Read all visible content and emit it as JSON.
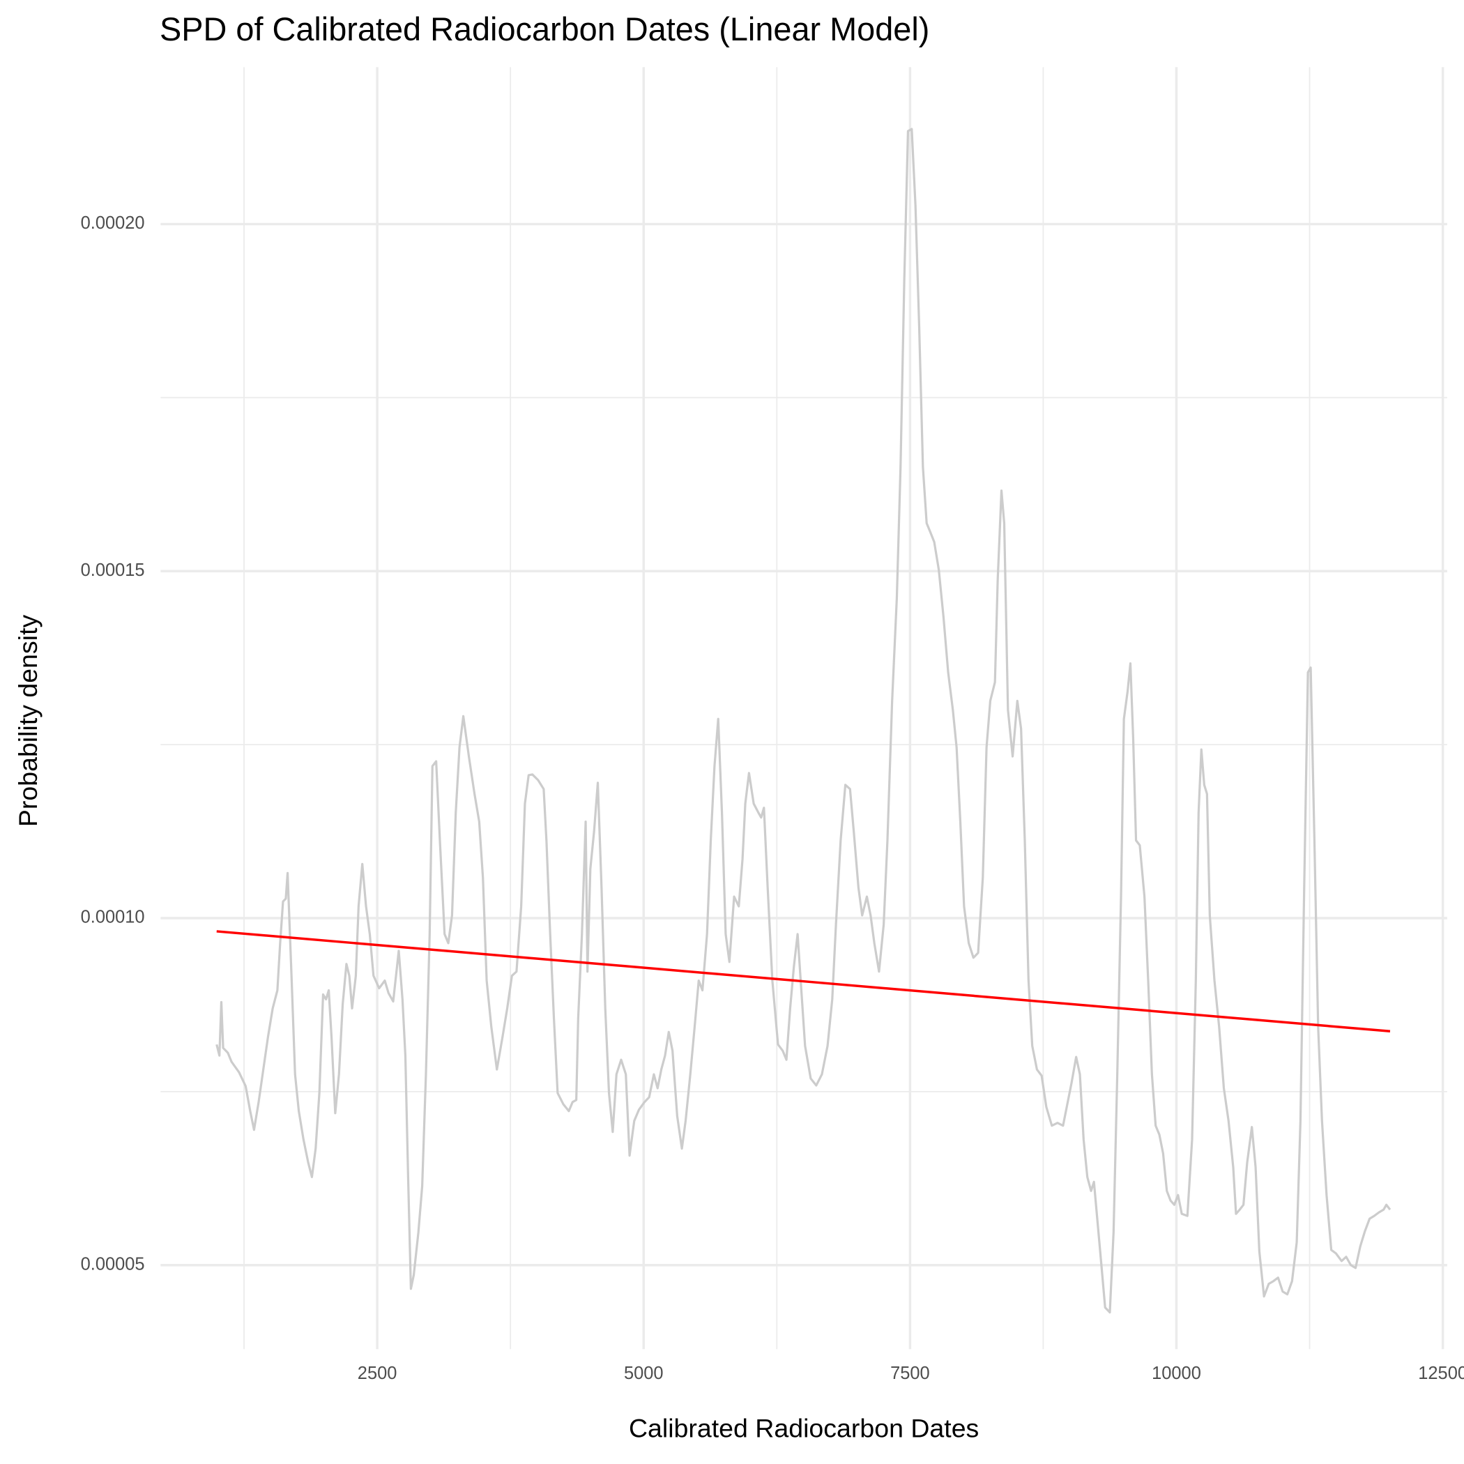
{
  "chart_data": {
    "type": "line",
    "title": "SPD of Calibrated Radiocarbon Dates (Linear Model)",
    "x_label": "Calibrated Radiocarbon Dates",
    "y_label": "Probability density",
    "xlim": [
      467,
      12541
    ],
    "ylim": [
      3.79e-05,
      0.0002226
    ],
    "xticks": [
      2500,
      5000,
      7500,
      10000,
      12500
    ],
    "yticks": [
      {
        "value": 5e-05,
        "label": "0.00005"
      },
      {
        "value": 0.0001,
        "label": "0.00010"
      },
      {
        "value": 0.00015,
        "label": "0.00015"
      },
      {
        "value": 0.0002,
        "label": "0.00020"
      }
    ],
    "grid": true,
    "series": [
      {
        "color": "#cccccc",
        "x": [
          993,
          1019,
          1037,
          1054,
          1098,
          1133,
          1203,
          1265,
          1308,
          1344,
          1387,
          1431,
          1475,
          1519,
          1563,
          1589,
          1616,
          1642,
          1659,
          1694,
          1729,
          1764,
          1808,
          1852,
          1887,
          1922,
          1957,
          1992,
          2019,
          2045,
          2071,
          2106,
          2141,
          2176,
          2211,
          2238,
          2264,
          2299,
          2325,
          2360,
          2395,
          2430,
          2465,
          2518,
          2571,
          2606,
          2650,
          2702,
          2737,
          2764,
          2790,
          2816,
          2843,
          2886,
          2922,
          2957,
          2992,
          3018,
          3053,
          3088,
          3132,
          3167,
          3202,
          3237,
          3272,
          3308,
          3360,
          3413,
          3457,
          3492,
          3527,
          3571,
          3623,
          3676,
          3720,
          3764,
          3807,
          3851,
          3886,
          3921,
          3956,
          4009,
          4062,
          4088,
          4123,
          4158,
          4193,
          4246,
          4298,
          4333,
          4368,
          4386,
          4421,
          4456,
          4473,
          4500,
          4535,
          4570,
          4605,
          4640,
          4675,
          4710,
          4745,
          4789,
          4833,
          4868,
          4912,
          4956,
          5008,
          5052,
          5096,
          5131,
          5166,
          5201,
          5236,
          5271,
          5315,
          5359,
          5394,
          5438,
          5482,
          5517,
          5552,
          5595,
          5630,
          5665,
          5700,
          5735,
          5770,
          5805,
          5849,
          5893,
          5928,
          5954,
          5989,
          6033,
          6077,
          6103,
          6129,
          6164,
          6208,
          6261,
          6305,
          6340,
          6375,
          6410,
          6445,
          6480,
          6515,
          6568,
          6620,
          6673,
          6726,
          6770,
          6805,
          6849,
          6893,
          6937,
          6972,
          7016,
          7051,
          7095,
          7130,
          7165,
          7209,
          7253,
          7288,
          7332,
          7376,
          7411,
          7446,
          7481,
          7516,
          7551,
          7586,
          7621,
          7656,
          7691,
          7727,
          7770,
          7814,
          7858,
          7902,
          7937,
          7972,
          8007,
          8051,
          8095,
          8139,
          8183,
          8218,
          8253,
          8297,
          8323,
          8358,
          8384,
          8419,
          8463,
          8507,
          8542,
          8577,
          8612,
          8647,
          8691,
          8735,
          8779,
          8831,
          8884,
          8936,
          8980,
          9015,
          9059,
          9094,
          9129,
          9164,
          9199,
          9226,
          9261,
          9296,
          9331,
          9375,
          9410,
          9445,
          9480,
          9507,
          9542,
          9568,
          9594,
          9621,
          9656,
          9700,
          9735,
          9770,
          9805,
          9840,
          9875,
          9910,
          9945,
          9980,
          10015,
          10050,
          10103,
          10147,
          10182,
          10208,
          10234,
          10261,
          10287,
          10313,
          10357,
          10401,
          10445,
          10489,
          10533,
          10559,
          10594,
          10629,
          10664,
          10708,
          10743,
          10778,
          10822,
          10866,
          10910,
          10954,
          10997,
          11041,
          11085,
          11129,
          11164,
          11199,
          11234,
          11260,
          11295,
          11330,
          11366,
          11409,
          11453,
          11497,
          11550,
          11593,
          11637,
          11681,
          11725,
          11769,
          11813,
          11856,
          11900,
          11944,
          11970,
          12005
        ],
        "values": [
          8.18e-05,
          8.02e-05,
          8.79e-05,
          8.13e-05,
          8.06e-05,
          7.93e-05,
          7.78e-05,
          7.58e-05,
          7.22e-05,
          6.95e-05,
          7.35e-05,
          7.82e-05,
          8.29e-05,
          8.7e-05,
          8.96e-05,
          9.64e-05,
          0.0001024,
          0.0001028,
          0.0001065,
          9.23e-05,
          7.75e-05,
          7.22e-05,
          6.81e-05,
          6.48e-05,
          6.27e-05,
          6.68e-05,
          7.48e-05,
          8.9e-05,
          8.83e-05,
          8.96e-05,
          8.29e-05,
          7.19e-05,
          7.75e-05,
          8.76e-05,
          9.34e-05,
          9.17e-05,
          8.7e-05,
          9.17e-05,
          0.0001017,
          0.0001078,
          0.0001017,
          9.77e-05,
          9.17e-05,
          8.99e-05,
          9.1e-05,
          8.92e-05,
          8.8e-05,
          9.53e-05,
          8.83e-05,
          8.02e-05,
          6.27e-05,
          4.66e-05,
          4.86e-05,
          5.47e-05,
          6.14e-05,
          7.75e-05,
          9.77e-05,
          0.0001219,
          0.0001226,
          0.0001112,
          9.77e-05,
          9.64e-05,
          0.0001004,
          0.0001152,
          0.0001246,
          0.0001291,
          0.0001233,
          0.0001179,
          0.0001139,
          0.0001058,
          9.1e-05,
          8.43e-05,
          7.82e-05,
          8.29e-05,
          8.7e-05,
          9.17e-05,
          9.23e-05,
          0.0001017,
          0.0001165,
          0.0001206,
          0.0001207,
          0.0001199,
          0.0001186,
          0.0001112,
          9.77e-05,
          8.56e-05,
          7.48e-05,
          7.32e-05,
          7.22e-05,
          7.35e-05,
          7.38e-05,
          8.56e-05,
          9.77e-05,
          0.0001139,
          9.23e-05,
          0.0001071,
          0.0001125,
          0.0001195,
          0.0001044,
          8.7e-05,
          7.48e-05,
          6.92e-05,
          7.75e-05,
          7.96e-05,
          7.75e-05,
          6.58e-05,
          7.08e-05,
          7.24e-05,
          7.35e-05,
          7.42e-05,
          7.75e-05,
          7.55e-05,
          7.82e-05,
          8.02e-05,
          8.36e-05,
          8.09e-05,
          7.15e-05,
          6.68e-05,
          7.08e-05,
          7.75e-05,
          8.49e-05,
          9.1e-05,
          8.96e-05,
          9.77e-05,
          0.0001112,
          0.0001219,
          0.0001287,
          0.0001152,
          9.77e-05,
          9.37e-05,
          0.0001031,
          0.0001017,
          0.0001085,
          0.0001165,
          0.0001209,
          0.0001165,
          0.0001152,
          0.0001145,
          0.0001159,
          0.0001044,
          9.1e-05,
          8.18e-05,
          8.09e-05,
          7.96e-05,
          8.7e-05,
          9.3e-05,
          9.77e-05,
          8.96e-05,
          8.16e-05,
          7.69e-05,
          7.59e-05,
          7.75e-05,
          8.16e-05,
          8.83e-05,
          9.91e-05,
          0.0001112,
          0.0001192,
          0.0001186,
          0.0001125,
          0.0001044,
          0.0001004,
          0.0001031,
          0.0001004,
          9.64e-05,
          9.23e-05,
          9.91e-05,
          0.0001112,
          0.0001313,
          0.0001461,
          0.000165,
          0.0001919,
          0.0002134,
          0.0002137,
          0.0002027,
          0.0001852,
          0.000165,
          0.0001569,
          0.0001556,
          0.0001542,
          0.0001502,
          0.0001434,
          0.0001354,
          0.00013,
          0.0001246,
          0.0001139,
          0.0001017,
          9.64e-05,
          9.43e-05,
          9.5e-05,
          0.0001058,
          0.0001246,
          0.0001313,
          0.000134,
          0.0001488,
          0.0001616,
          0.0001569,
          0.00013,
          0.0001233,
          0.0001313,
          0.0001273,
          0.0001112,
          9.1e-05,
          8.16e-05,
          7.82e-05,
          7.73e-05,
          7.28e-05,
          7.01e-05,
          7.05e-05,
          7.01e-05,
          7.35e-05,
          7.62e-05,
          8e-05,
          7.75e-05,
          6.81e-05,
          6.27e-05,
          6.07e-05,
          6.2e-05,
          5.6e-05,
          5e-05,
          4.39e-05,
          4.32e-05,
          5.47e-05,
          7.75e-05,
          0.0001031,
          0.0001287,
          0.0001327,
          0.0001367,
          0.000126,
          0.0001112,
          0.0001105,
          0.0001031,
          9.1e-05,
          7.75e-05,
          7.01e-05,
          6.88e-05,
          6.61e-05,
          6.07e-05,
          5.93e-05,
          5.87e-05,
          6.01e-05,
          5.74e-05,
          5.71e-05,
          6.81e-05,
          9.1e-05,
          0.0001152,
          0.0001243,
          0.0001192,
          0.0001179,
          0.0001004,
          9.1e-05,
          8.43e-05,
          7.55e-05,
          7.08e-05,
          6.41e-05,
          5.74e-05,
          5.8e-05,
          5.87e-05,
          6.48e-05,
          6.99e-05,
          6.41e-05,
          5.2e-05,
          4.55e-05,
          4.73e-05,
          4.77e-05,
          4.82e-05,
          4.62e-05,
          4.58e-05,
          4.77e-05,
          5.33e-05,
          7.08e-05,
          0.0001044,
          0.0001354,
          0.0001361,
          0.0001112,
          8.43e-05,
          7.08e-05,
          6.01e-05,
          5.22e-05,
          5.17e-05,
          5.06e-05,
          5.12e-05,
          5e-05,
          4.96e-05,
          5.27e-05,
          5.49e-05,
          5.67e-05,
          5.71e-05,
          5.76e-05,
          5.8e-05,
          5.87e-05,
          5.8e-05
        ]
      },
      {
        "color": "#ff0000",
        "x": [
          993,
          12005
        ],
        "values": [
          9.81e-05,
          8.37e-05
        ]
      }
    ]
  }
}
